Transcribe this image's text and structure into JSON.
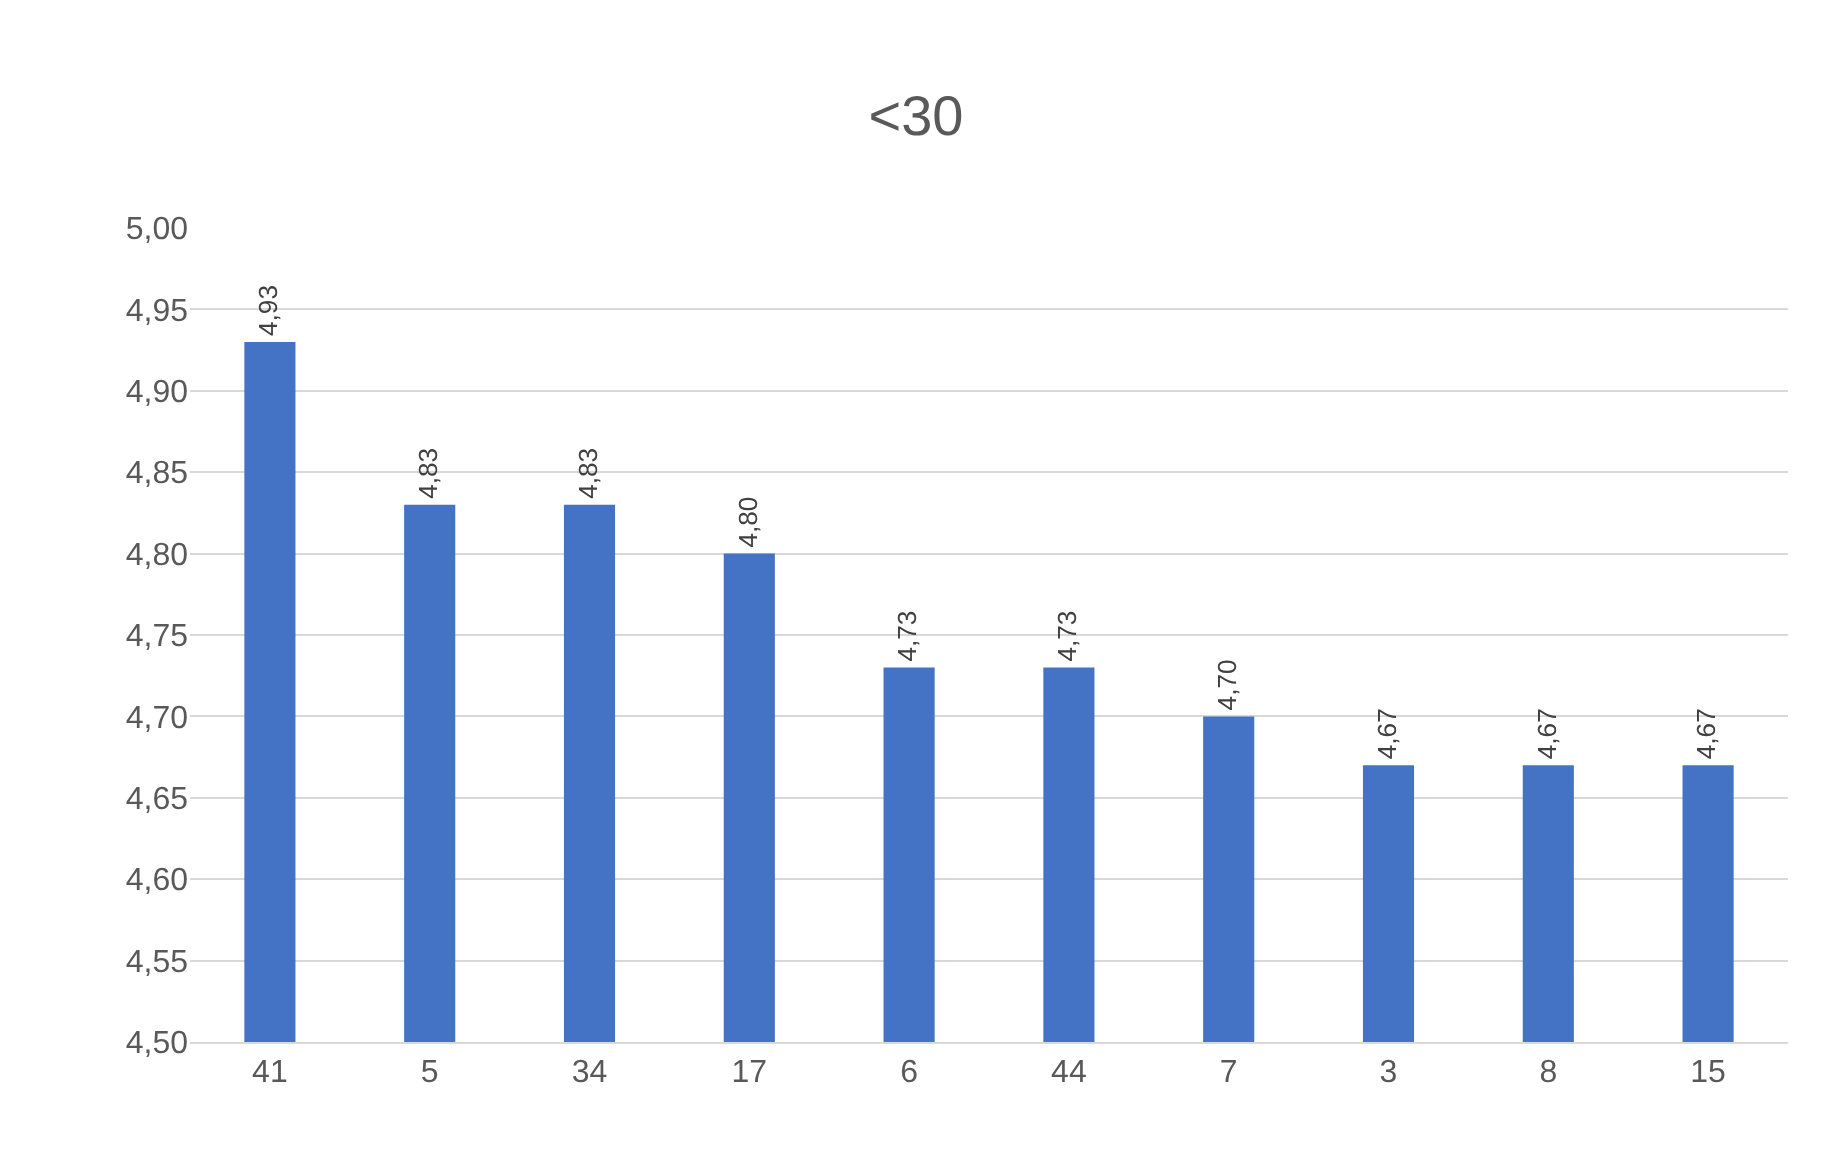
{
  "chart_data": {
    "type": "bar",
    "title": "<30",
    "categories": [
      "41",
      "5",
      "34",
      "17",
      "6",
      "44",
      "7",
      "3",
      "8",
      "15"
    ],
    "values": [
      4.93,
      4.83,
      4.83,
      4.8,
      4.73,
      4.73,
      4.7,
      4.67,
      4.67,
      4.67
    ],
    "value_labels": [
      "4,93",
      "4,83",
      "4,83",
      "4,80",
      "4,73",
      "4,73",
      "4,70",
      "4,67",
      "4,67",
      "4,67"
    ],
    "color": "#4472c4",
    "ylim": [
      4.5,
      5.0
    ],
    "yticks": [
      {
        "value": 4.5,
        "label": "4,50"
      },
      {
        "value": 4.55,
        "label": "4,55"
      },
      {
        "value": 4.6,
        "label": "4,60"
      },
      {
        "value": 4.65,
        "label": "4,65"
      },
      {
        "value": 4.7,
        "label": "4,70"
      },
      {
        "value": 4.75,
        "label": "4,75"
      },
      {
        "value": 4.8,
        "label": "4,80"
      },
      {
        "value": 4.85,
        "label": "4,85"
      },
      {
        "value": 4.9,
        "label": "4,90"
      },
      {
        "value": 4.95,
        "label": "4,95"
      },
      {
        "value": 5.0,
        "label": "5,00"
      }
    ],
    "grid": "y",
    "legend": false
  }
}
